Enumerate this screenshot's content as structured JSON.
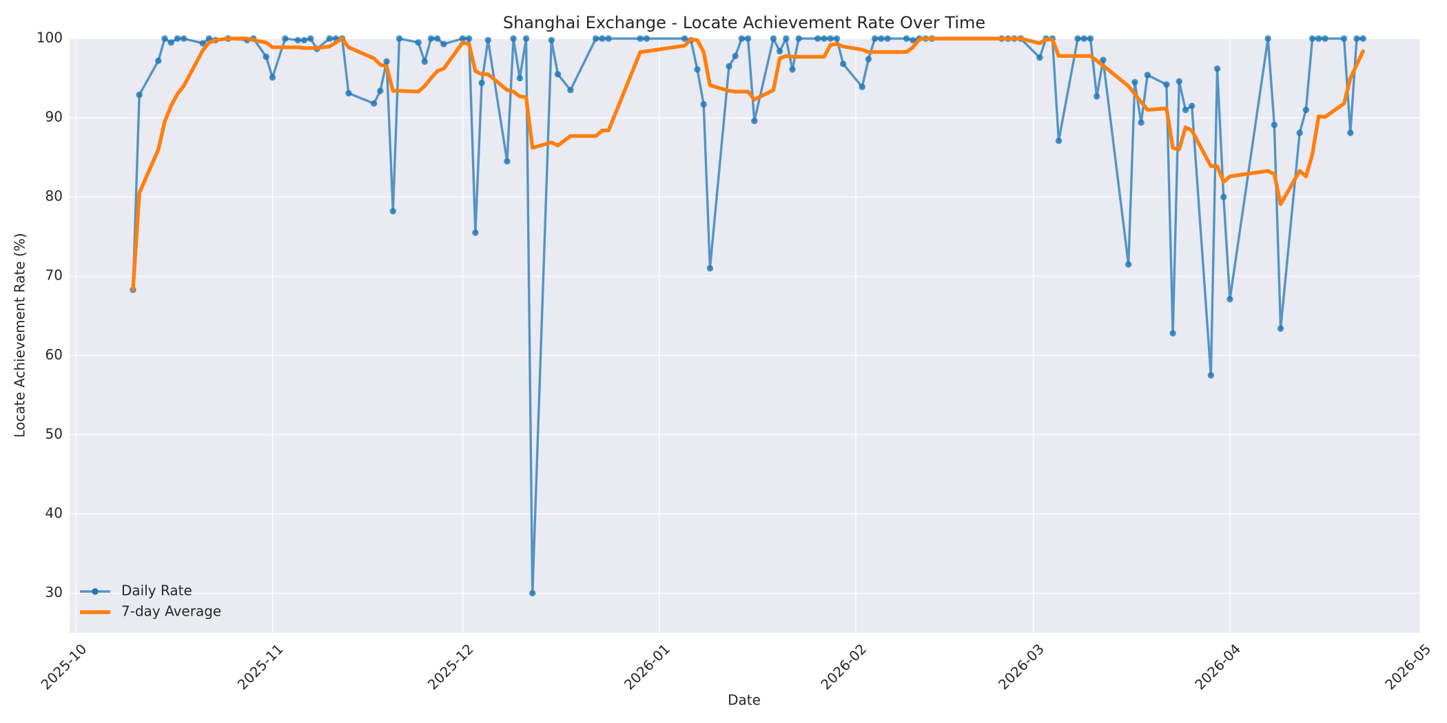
{
  "chart_data": {
    "type": "line",
    "title": "Shanghai Exchange - Locate Achievement Rate Over Time",
    "xlabel": "Date",
    "ylabel": "Locate Achievement Rate (%)",
    "x": [
      9,
      10,
      13,
      14,
      15,
      16,
      17,
      20,
      21,
      22,
      24,
      27,
      28,
      30,
      31,
      33,
      35,
      36,
      37,
      38,
      40,
      41,
      42,
      43,
      47,
      48,
      49,
      50,
      51,
      54,
      55,
      56,
      57,
      58,
      61,
      62,
      63,
      64,
      65,
      68,
      69,
      70,
      71,
      72,
      75,
      76,
      78,
      82,
      83,
      84,
      89,
      90,
      96,
      97,
      98,
      99,
      100,
      103,
      104,
      105,
      106,
      107,
      110,
      111,
      112,
      113,
      114,
      117,
      118,
      119,
      120,
      121,
      124,
      125,
      126,
      127,
      128,
      131,
      132,
      133,
      134,
      135,
      146,
      147,
      148,
      149,
      152,
      153,
      154,
      155,
      158,
      159,
      160,
      161,
      162,
      166,
      167,
      168,
      169,
      172,
      173,
      174,
      175,
      176,
      179,
      180,
      181,
      182,
      188,
      189,
      190,
      193,
      194,
      195,
      196,
      197,
      200,
      201,
      202,
      203
    ],
    "series": [
      {
        "name": "Daily Rate",
        "color": "#1f77b4",
        "markers": true,
        "values": [
          68.3,
          92.9,
          97.2,
          100,
          99.5,
          100,
          100,
          99.4,
          100,
          99.8,
          100,
          99.8,
          100,
          97.7,
          95.1,
          100,
          99.8,
          99.8,
          100,
          98.7,
          100,
          100,
          100,
          93.1,
          91.8,
          93.4,
          97.1,
          78.2,
          100,
          99.5,
          97.1,
          100,
          100,
          99.3,
          100,
          100,
          75.5,
          94.4,
          99.8,
          84.5,
          100,
          95,
          100,
          30,
          99.8,
          95.5,
          93.5,
          100,
          100,
          100,
          100,
          100,
          100,
          99.8,
          96.1,
          91.7,
          71,
          96.5,
          97.8,
          100,
          100,
          89.6,
          100,
          98.4,
          100,
          96.1,
          100,
          100,
          100,
          100,
          100,
          96.8,
          93.9,
          97.4,
          100,
          100,
          100,
          100,
          99.8,
          100,
          100,
          100,
          100,
          100,
          100,
          100,
          97.6,
          100,
          100,
          87.1,
          100,
          100,
          100,
          92.7,
          97.3,
          71.5,
          94.5,
          89.4,
          95.4,
          94.2,
          62.8,
          94.6,
          91,
          91.5,
          57.5,
          96.2,
          80,
          67.1,
          100,
          89.1,
          63.4,
          88.1,
          91,
          100,
          100,
          100,
          100,
          88.1,
          100,
          100
        ]
      },
      {
        "name": "7-day Average",
        "color": "#ff7f0e",
        "markers": false,
        "values": [
          68.3,
          80.5,
          86,
          89.5,
          91.5,
          93,
          94,
          98.5,
          99.5,
          99.8,
          100,
          100,
          99.8,
          99.5,
          98.9,
          98.9,
          98.9,
          98.8,
          98.8,
          98.8,
          99,
          99.5,
          100,
          98.9,
          97.5,
          96.7,
          96.5,
          93.4,
          93.4,
          93.3,
          94,
          95,
          95.9,
          96.2,
          99.5,
          99.3,
          95.9,
          95.5,
          95.5,
          93.5,
          93.3,
          92.7,
          92.6,
          86.2,
          86.9,
          86.5,
          87.7,
          87.7,
          88.4,
          88.4,
          98.3,
          98.4,
          99.1,
          99.9,
          99.8,
          98.3,
          94.1,
          93.4,
          93.3,
          93.3,
          93.3,
          92.3,
          93.5,
          97.5,
          97.8,
          97.7,
          97.7,
          97.7,
          97.7,
          99.2,
          99.3,
          99,
          98.6,
          98.3,
          98.3,
          98.3,
          98.3,
          98.3,
          98.9,
          99.9,
          100,
          100,
          100,
          100,
          100,
          100,
          99.4,
          99.9,
          99.9,
          97.8,
          97.8,
          97.8,
          97.8,
          97.2,
          96.6,
          94,
          93,
          92,
          91,
          91.2,
          86.2,
          86,
          88.8,
          88.4,
          83.9,
          83.9,
          81.9,
          82.6,
          83.3,
          82.9,
          79.1,
          83.3,
          82.6,
          85.4,
          90.2,
          90.1,
          91.8,
          95,
          96.7,
          98.4
        ]
      }
    ],
    "xlim": [
      -1,
      212
    ],
    "xticks": [
      {
        "value": 0,
        "label": "2025-10"
      },
      {
        "value": 31,
        "label": "2025-11"
      },
      {
        "value": 61,
        "label": "2025-12"
      },
      {
        "value": 92,
        "label": "2026-01"
      },
      {
        "value": 123,
        "label": "2026-02"
      },
      {
        "value": 151,
        "label": "2026-03"
      },
      {
        "value": 182,
        "label": "2026-04"
      },
      {
        "value": 212,
        "label": "2026-05"
      }
    ],
    "ylim": [
      25,
      100
    ],
    "yticks": [
      30,
      40,
      50,
      60,
      70,
      80,
      90,
      100
    ],
    "grid": true,
    "legend": "lower left"
  }
}
